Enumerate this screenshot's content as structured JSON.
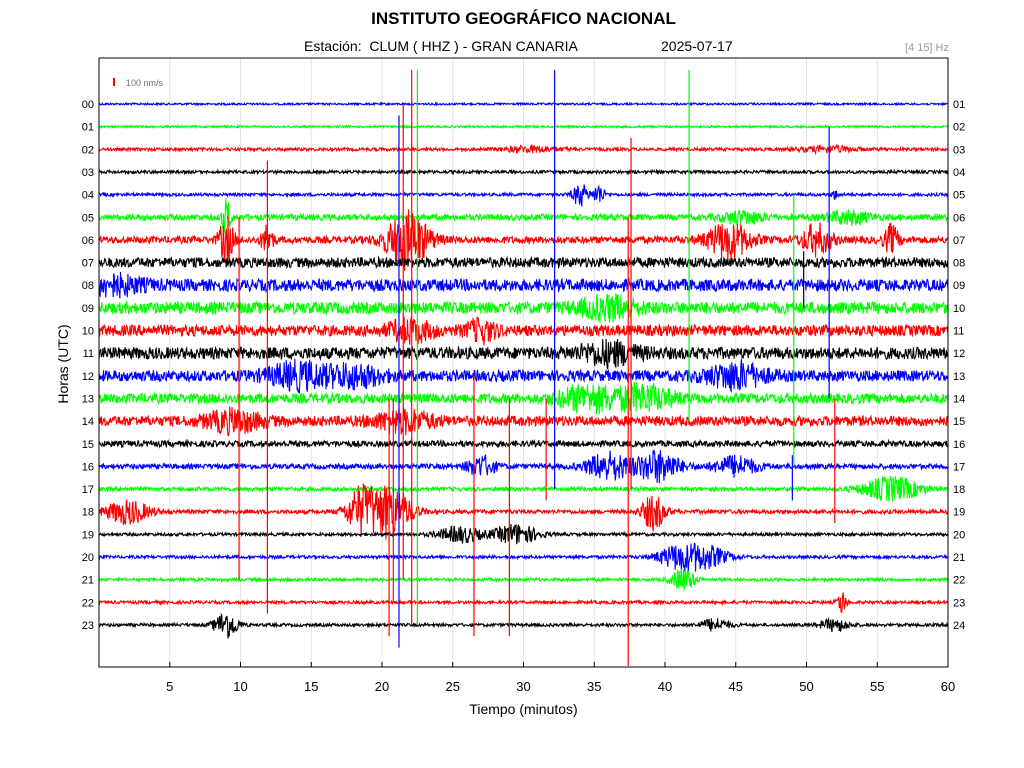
{
  "header": {
    "title": "INSTITUTO GEOGRÁFICO NACIONAL",
    "station_label": "Estación:",
    "station": "CLUM ( HHZ ) - GRAN CANARIA",
    "date": "2025-07-17",
    "band": "[4 15] Hz"
  },
  "chart_data": {
    "type": "line",
    "xlabel": "Tiempo (minutos)",
    "ylabel": "Horas (UTC)",
    "xlim": [
      0,
      60
    ],
    "x_ticks": [
      5,
      10,
      15,
      20,
      25,
      30,
      35,
      40,
      45,
      50,
      55,
      60
    ],
    "scale_label": "100 nm/s",
    "grid": true,
    "trace_colors": [
      "#0000ff",
      "#00ff00",
      "#ff0000",
      "#000000"
    ],
    "left_hours": [
      "00",
      "01",
      "02",
      "03",
      "04",
      "05",
      "06",
      "07",
      "08",
      "09",
      "10",
      "11",
      "12",
      "13",
      "14",
      "15",
      "16",
      "17",
      "18",
      "19",
      "20",
      "21",
      "22",
      "23"
    ],
    "right_hours": [
      "01",
      "02",
      "03",
      "04",
      "05",
      "06",
      "07",
      "08",
      "09",
      "10",
      "11",
      "12",
      "13",
      "14",
      "15",
      "16",
      "17",
      "18",
      "19",
      "20",
      "21",
      "22",
      "23",
      "24"
    ],
    "noise_level": [
      1.0,
      1.0,
      1.5,
      1.5,
      1.5,
      3,
      3.5,
      5,
      6,
      6,
      5.5,
      6,
      5.5,
      5,
      5,
      3,
      2.5,
      2,
      2,
      1.5,
      1.5,
      1.5,
      1.5,
      1.5
    ],
    "events": [
      {
        "hour": 2,
        "minute": 30.5,
        "amp": 3,
        "dur": 2
      },
      {
        "hour": 2,
        "minute": 51.5,
        "amp": 3,
        "dur": 2
      },
      {
        "hour": 4,
        "minute": 34,
        "amp": 12,
        "dur": 0.5
      },
      {
        "hour": 4,
        "minute": 35.3,
        "amp": 10,
        "dur": 0.4
      },
      {
        "hour": 4,
        "minute": 52,
        "amp": 4,
        "dur": 0.3
      },
      {
        "hour": 5,
        "minute": 9,
        "amp": 18,
        "dur": 0.3
      },
      {
        "hour": 5,
        "minute": 45.5,
        "amp": 6,
        "dur": 1.5
      },
      {
        "hour": 5,
        "minute": 53,
        "amp": 6,
        "dur": 1.5
      },
      {
        "hour": 6,
        "minute": 9,
        "amp": 22,
        "dur": 0.5
      },
      {
        "hour": 6,
        "minute": 11.9,
        "amp": 14,
        "dur": 0.4
      },
      {
        "hour": 6,
        "minute": 21.8,
        "amp": 28,
        "dur": 1.5
      },
      {
        "hour": 6,
        "minute": 44.5,
        "amp": 18,
        "dur": 1.5
      },
      {
        "hour": 6,
        "minute": 50.7,
        "amp": 15,
        "dur": 1
      },
      {
        "hour": 6,
        "minute": 56,
        "amp": 14,
        "dur": 0.5
      },
      {
        "hour": 8,
        "minute": 1,
        "amp": 8,
        "dur": 2
      },
      {
        "hour": 9,
        "minute": 36,
        "amp": 10,
        "dur": 2
      },
      {
        "hour": 10,
        "minute": 22,
        "amp": 10,
        "dur": 1.5
      },
      {
        "hour": 10,
        "minute": 27,
        "amp": 10,
        "dur": 1
      },
      {
        "hour": 11,
        "minute": 36,
        "amp": 10,
        "dur": 2
      },
      {
        "hour": 12,
        "minute": 14,
        "amp": 12,
        "dur": 2
      },
      {
        "hour": 12,
        "minute": 18,
        "amp": 10,
        "dur": 2
      },
      {
        "hour": 12,
        "minute": 45,
        "amp": 12,
        "dur": 2
      },
      {
        "hour": 13,
        "minute": 34.5,
        "amp": 12,
        "dur": 2
      },
      {
        "hour": 13,
        "minute": 38.5,
        "amp": 12,
        "dur": 2
      },
      {
        "hour": 14,
        "minute": 9.5,
        "amp": 10,
        "dur": 2
      },
      {
        "hour": 14,
        "minute": 21.5,
        "amp": 10,
        "dur": 2
      },
      {
        "hour": 16,
        "minute": 27,
        "amp": 10,
        "dur": 1
      },
      {
        "hour": 16,
        "minute": 36,
        "amp": 14,
        "dur": 1.5
      },
      {
        "hour": 16,
        "minute": 39.5,
        "amp": 16,
        "dur": 1.5
      },
      {
        "hour": 16,
        "minute": 45,
        "amp": 10,
        "dur": 1.5
      },
      {
        "hour": 17,
        "minute": 56,
        "amp": 12,
        "dur": 2
      },
      {
        "hour": 18,
        "minute": 2,
        "amp": 12,
        "dur": 1.5
      },
      {
        "hour": 18,
        "minute": 18.5,
        "amp": 22,
        "dur": 1
      },
      {
        "hour": 18,
        "minute": 20.5,
        "amp": 26,
        "dur": 1.5
      },
      {
        "hour": 18,
        "minute": 39.2,
        "amp": 18,
        "dur": 0.8
      },
      {
        "hour": 19,
        "minute": 25.5,
        "amp": 8,
        "dur": 1.5
      },
      {
        "hour": 19,
        "minute": 29.5,
        "amp": 10,
        "dur": 1.5
      },
      {
        "hour": 20,
        "minute": 41,
        "amp": 12,
        "dur": 1.5
      },
      {
        "hour": 20,
        "minute": 43,
        "amp": 10,
        "dur": 1.5
      },
      {
        "hour": 21,
        "minute": 41.3,
        "amp": 12,
        "dur": 0.8
      },
      {
        "hour": 22,
        "minute": 52.5,
        "amp": 12,
        "dur": 0.3
      },
      {
        "hour": 23,
        "minute": 9,
        "amp": 14,
        "dur": 0.8
      },
      {
        "hour": 23,
        "minute": 43.5,
        "amp": 6,
        "dur": 1
      },
      {
        "hour": 23,
        "minute": 52,
        "amp": 6,
        "dur": 1
      }
    ],
    "spikes": [
      {
        "hour": 6,
        "minute": 9.9,
        "up": 1,
        "down": 15
      },
      {
        "hour": 6,
        "minute": 11.9,
        "up": 3.5,
        "down": 16.5
      },
      {
        "hour": 4,
        "minute": 21.2,
        "up": 3.5,
        "down": 20
      },
      {
        "hour": 6,
        "minute": 22.1,
        "up": 7.5,
        "down": 17
      },
      {
        "hour": 6,
        "minute": 21.5,
        "up": 6,
        "down": 15
      },
      {
        "hour": 5,
        "minute": 22.5,
        "up": 6.5,
        "down": 18
      },
      {
        "hour": 14,
        "minute": 20.5,
        "up": 1,
        "down": 9.5
      },
      {
        "hour": 14,
        "minute": 20.8,
        "up": 1,
        "down": 8
      },
      {
        "hour": 5,
        "minute": 41.7,
        "up": 6.5,
        "down": 9
      },
      {
        "hour": 5,
        "minute": 49.1,
        "up": 1,
        "down": 11
      },
      {
        "hour": 2,
        "minute": 37.6,
        "up": 0.5,
        "down": 15
      },
      {
        "hour": 4,
        "minute": 32.2,
        "up": 5.5,
        "down": 13
      },
      {
        "hour": 4,
        "minute": 51.6,
        "up": 3,
        "down": 9
      },
      {
        "hour": 6,
        "minute": 37.4,
        "up": 1,
        "down": 26
      },
      {
        "hour": 14,
        "minute": 26.5,
        "up": 2,
        "down": 9.5
      },
      {
        "hour": 14,
        "minute": 29,
        "up": 1,
        "down": 9.5
      },
      {
        "hour": 14,
        "minute": 52,
        "up": 1,
        "down": 4.5
      },
      {
        "hour": 14,
        "minute": 31.6,
        "up": 1,
        "down": 3.5
      },
      {
        "hour": 7,
        "minute": 49.8,
        "up": 0.5,
        "down": 2
      },
      {
        "hour": 16,
        "minute": 49,
        "up": 0.5,
        "down": 1.5
      }
    ]
  }
}
